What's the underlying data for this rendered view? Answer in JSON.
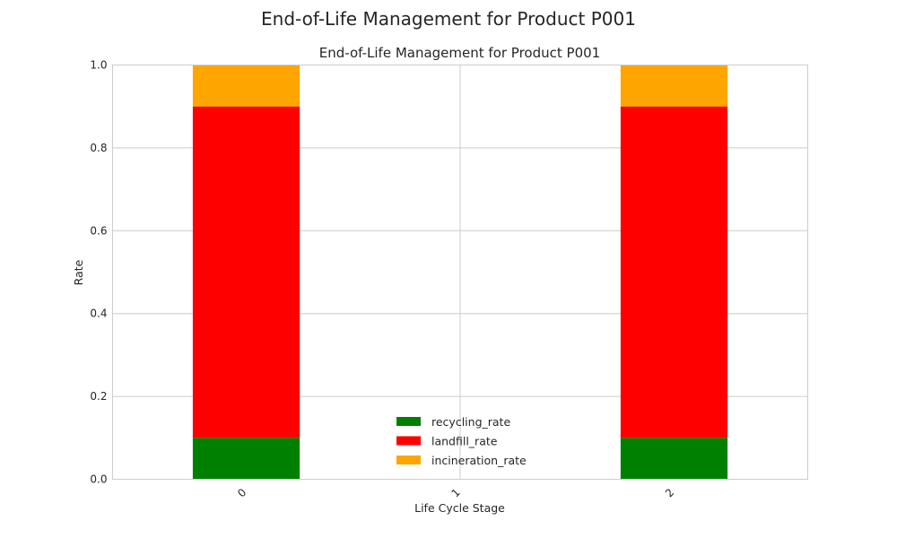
{
  "chart_data": {
    "type": "bar",
    "stacked": true,
    "suptitle": "End-of-Life Management for Product P001",
    "title": "End-of-Life Management for Product P001",
    "xlabel": "Life Cycle Stage",
    "ylabel": "Rate",
    "categories": [
      "0",
      "1",
      "2"
    ],
    "ylim": [
      0,
      1.0
    ],
    "yticks": [
      "0.0",
      "0.2",
      "0.4",
      "0.6",
      "0.8",
      "1.0"
    ],
    "grid": true,
    "legend_position": "lower-center",
    "series": [
      {
        "name": "recycling_rate",
        "color": "#008000",
        "values": [
          0.1,
          0.0,
          0.1
        ]
      },
      {
        "name": "landfill_rate",
        "color": "#ff0000",
        "values": [
          0.8,
          0.0,
          0.8
        ]
      },
      {
        "name": "incineration_rate",
        "color": "#ffa500",
        "values": [
          0.1,
          0.0,
          0.1
        ]
      }
    ]
  }
}
